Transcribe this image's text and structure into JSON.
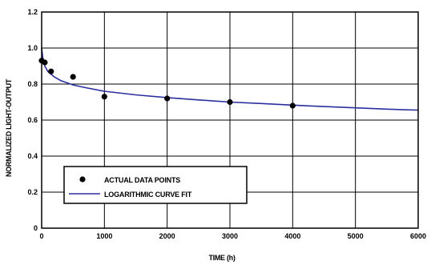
{
  "chart_data": {
    "type": "scatter",
    "xlabel": "TIME (h)",
    "ylabel": "NORMALIZED LIGHT-OUTPUT",
    "xlim": [
      0,
      6000
    ],
    "ylim": [
      0,
      1.2
    ],
    "x_ticks": [
      "0",
      "1000",
      "2000",
      "3000",
      "4000",
      "5000",
      "6000"
    ],
    "y_ticks": [
      "0",
      "0.2",
      "0.4",
      "0.6",
      "0.8",
      "1.0",
      "1.2"
    ],
    "grid": true,
    "legend_position": "bottom-left",
    "series": [
      {
        "name": "ACTUAL DATA POINTS",
        "kind": "points",
        "color": "#000000",
        "x": [
          0,
          50,
          150,
          500,
          1000,
          2000,
          3000,
          4000
        ],
        "y": [
          0.93,
          0.92,
          0.87,
          0.84,
          0.73,
          0.72,
          0.7,
          0.68
        ]
      },
      {
        "name": "LOGARITHMIC CURVE FIT",
        "kind": "line",
        "color": "#2b2fa0",
        "x": [
          0,
          20,
          50,
          100,
          200,
          300,
          500,
          700,
          1000,
          1500,
          2000,
          2500,
          3000,
          3500,
          4000,
          4500,
          5000,
          5500,
          6000
        ],
        "y": [
          1.0,
          0.94,
          0.9,
          0.87,
          0.84,
          0.82,
          0.795,
          0.78,
          0.76,
          0.74,
          0.725,
          0.712,
          0.7,
          0.692,
          0.683,
          0.675,
          0.668,
          0.661,
          0.655
        ]
      }
    ]
  }
}
